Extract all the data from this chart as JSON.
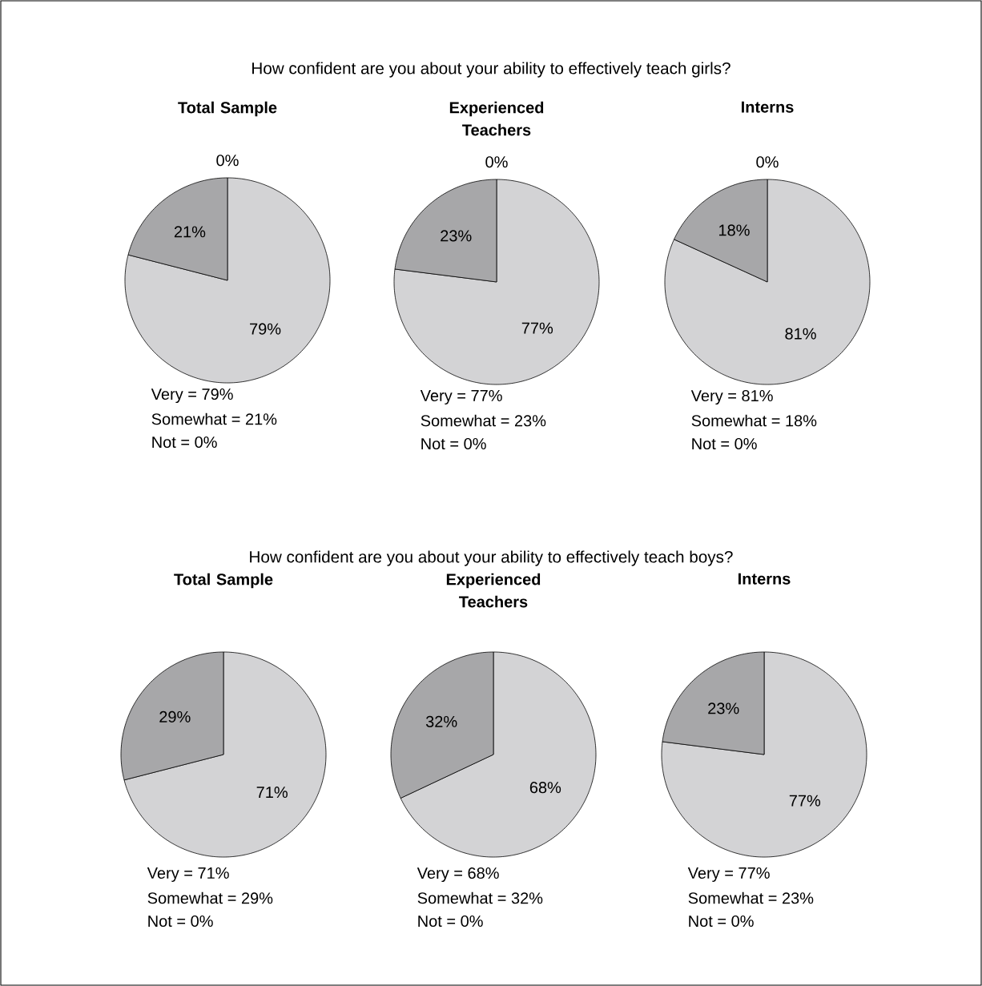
{
  "chart_data": [
    {
      "type": "pie",
      "title": "How confident are you about your ability to effectively teach girls?",
      "subtitle": "Total Sample",
      "categories": [
        null,
        null,
        null
      ],
      "values": [
        79,
        21,
        0
      ],
      "value_labels": [
        "79%",
        "21%",
        "0%"
      ],
      "colors": [
        "#d3d3d5",
        "#a7a7a9",
        "#ffffff"
      ],
      "annotations": [
        "Very = 79%",
        "Somewhat = 21%",
        "Not = 0%"
      ]
    },
    {
      "type": "pie",
      "subtitle": "Experienced Teachers",
      "categories": [
        null,
        null,
        null
      ],
      "values": [
        77,
        23,
        0
      ],
      "value_labels": [
        "77%",
        "23%",
        "0%"
      ],
      "colors": [
        "#d3d3d5",
        "#a7a7a9",
        "#ffffff"
      ],
      "annotations": [
        "Very = 77%",
        "Somewhat = 23%",
        "Not = 0%"
      ]
    },
    {
      "type": "pie",
      "subtitle": "Interns",
      "categories": [
        null,
        null,
        null
      ],
      "values": [
        81,
        18,
        0
      ],
      "value_labels": [
        "81%",
        "18%",
        "0%"
      ],
      "colors": [
        "#d3d3d5",
        "#a7a7a9",
        "#ffffff"
      ],
      "annotations": [
        "Very = 81%",
        "Somewhat = 18%",
        "Not = 0%"
      ]
    },
    {
      "type": "pie",
      "title": "How confident are you about your ability to effectively teach boys?",
      "subtitle": "Total Sample",
      "categories": [
        null,
        null,
        null
      ],
      "values": [
        71,
        29,
        0
      ],
      "value_labels": [
        "71%",
        "29%",
        null
      ],
      "colors": [
        "#d3d3d5",
        "#a7a7a9",
        "#ffffff"
      ],
      "annotations": [
        "Very = 71%",
        "Somewhat = 29%",
        "Not = 0%"
      ]
    },
    {
      "type": "pie",
      "subtitle": "Experienced Teachers",
      "categories": [
        null,
        null,
        null
      ],
      "values": [
        68,
        32,
        0
      ],
      "value_labels": [
        "68%",
        "32%",
        null
      ],
      "colors": [
        "#d3d3d5",
        "#a7a7a9",
        "#ffffff"
      ],
      "annotations": [
        "Very = 68%",
        "Somewhat = 32%",
        "Not = 0%"
      ]
    },
    {
      "type": "pie",
      "subtitle": "Interns",
      "categories": [
        null,
        null,
        null
      ],
      "values": [
        77,
        23,
        0
      ],
      "value_labels": [
        "77%",
        "23%",
        null
      ],
      "colors": [
        "#d3d3d5",
        "#a7a7a9",
        "#ffffff"
      ],
      "annotations": [
        "Very = 77%",
        "Somewhat = 23%",
        "Not = 0%"
      ]
    }
  ]
}
